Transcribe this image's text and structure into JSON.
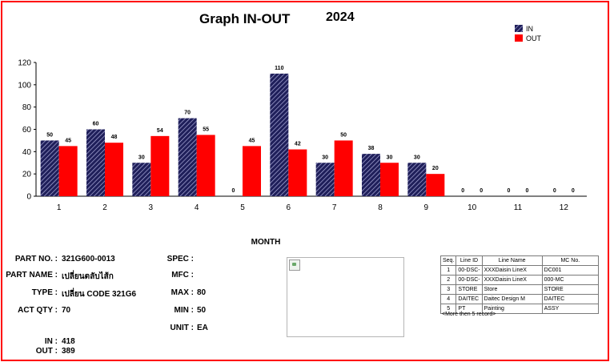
{
  "header": {
    "title": "Graph IN-OUT",
    "year": "2024"
  },
  "colors": {
    "in": "#1f1f5a",
    "in_stripe": "#b9b9e6",
    "out": "#ff0000",
    "frame": "#ff0000"
  },
  "chart_data": {
    "type": "bar",
    "title": "Graph IN-OUT",
    "xlabel": "MONTH",
    "ylabel": "",
    "categories": [
      "1",
      "2",
      "3",
      "4",
      "5",
      "6",
      "7",
      "8",
      "9",
      "10",
      "11",
      "12"
    ],
    "series": [
      {
        "name": "IN",
        "values": [
          50,
          60,
          30,
          70,
          0,
          110,
          30,
          38,
          30,
          0,
          0,
          0
        ]
      },
      {
        "name": "OUT",
        "values": [
          45,
          48,
          54,
          55,
          45,
          42,
          50,
          30,
          20,
          0,
          0,
          0
        ]
      }
    ],
    "ylim": [
      0,
      120
    ],
    "yticks": [
      0,
      20,
      40,
      60,
      80,
      100,
      120
    ],
    "grid": false,
    "legend_position": "top-right"
  },
  "info": {
    "part_no_label": "PART NO. :",
    "part_no": "321G600-0013",
    "part_name_label": "PART NAME :",
    "part_name": "เปลี่ยนตลับไส้ก",
    "type_label": "TYPE :",
    "type": "เปลี่ยน CODE 321G6",
    "act_qty_label": "ACT QTY :",
    "act_qty": "70",
    "in_label": "IN :",
    "in": "418",
    "out_label": "OUT :",
    "out": "389",
    "spec_label": "SPEC :",
    "spec": "",
    "mfc_label": "MFC :",
    "mfc": "",
    "max_label": "MAX :",
    "max": "80",
    "min_label": "MIN :",
    "min": "50",
    "unit_label": "UNIT :",
    "unit": "EA"
  },
  "line_table": {
    "headers": [
      "Seq.",
      "Line ID",
      "Line Name",
      "MC No."
    ],
    "rows": [
      [
        "1",
        "00-DSC-",
        "XXXDaisin LineX",
        "DC001"
      ],
      [
        "2",
        "00-DSC-",
        "XXXDaisin LineX",
        "000-MC"
      ],
      [
        "3",
        "STORE",
        "Store",
        "STORE"
      ],
      [
        "4",
        "DAITEC",
        "Daitec Design M",
        "DAITEC"
      ],
      [
        "5",
        "PT",
        "Painting",
        "ASSY"
      ]
    ],
    "more_text": "<More then 5 record>"
  }
}
